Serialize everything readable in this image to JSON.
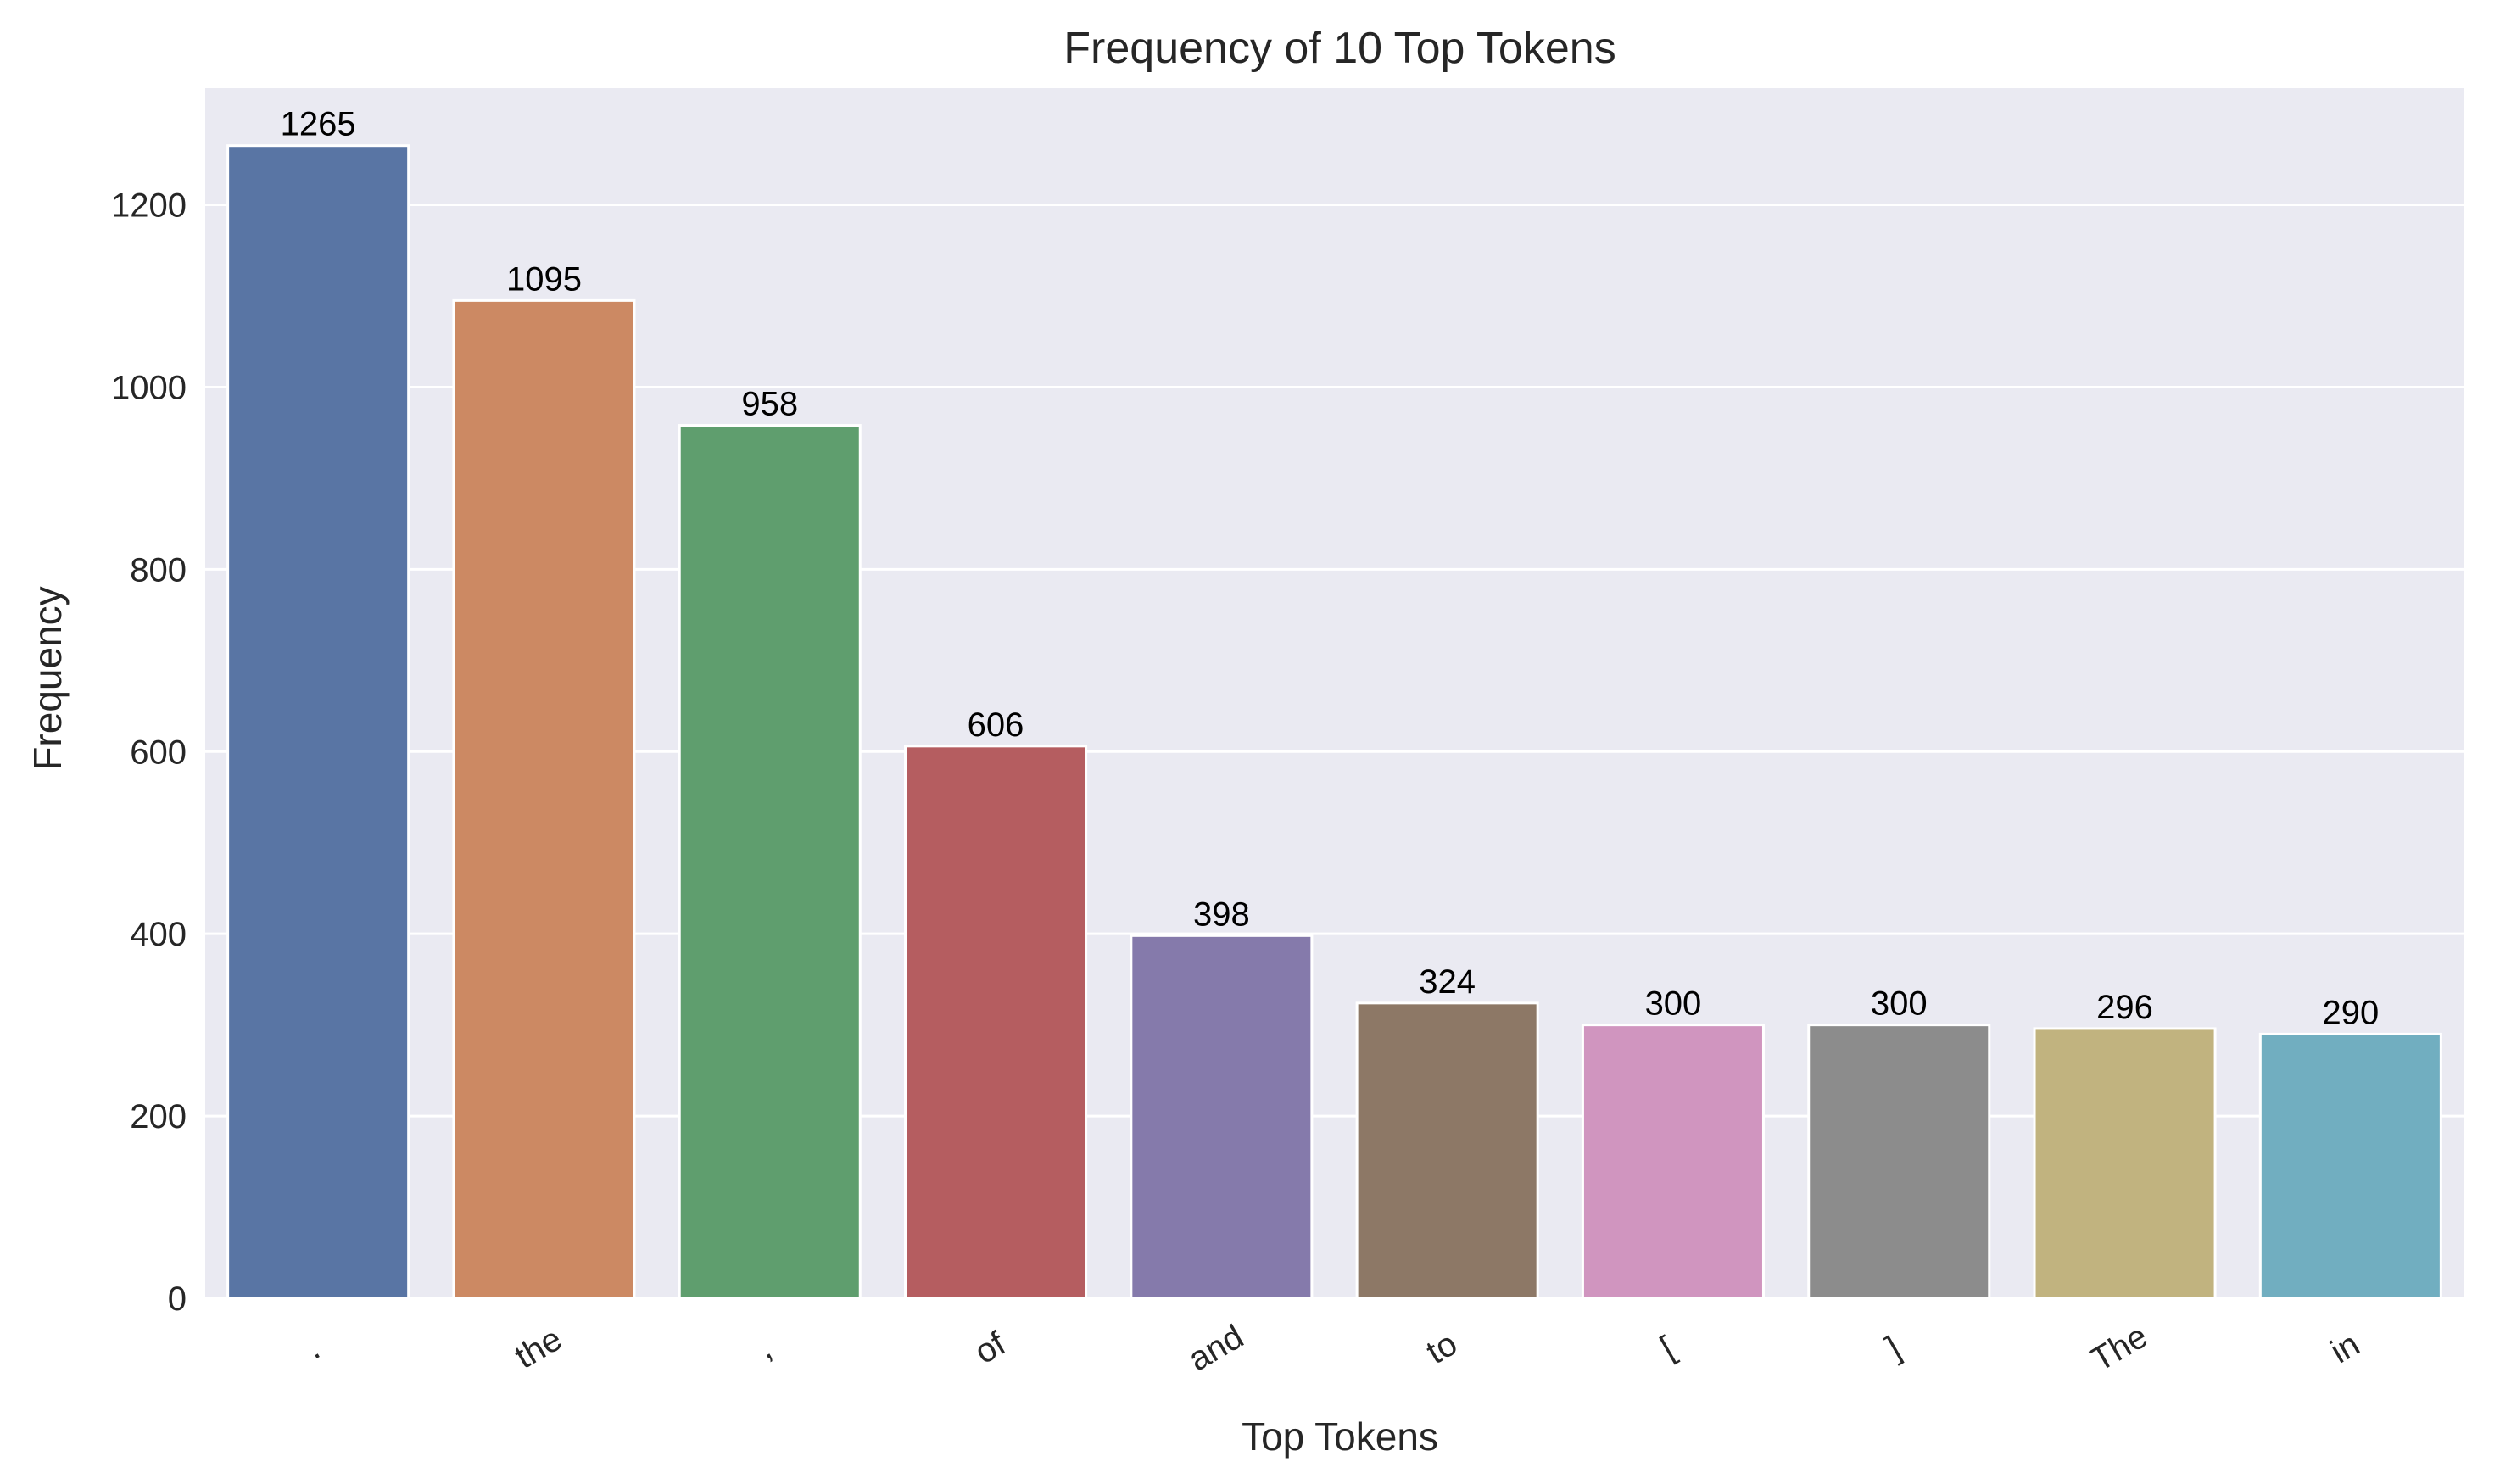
{
  "chart_data": {
    "type": "bar",
    "title": "Frequency of 10 Top Tokens",
    "xlabel": "Top Tokens",
    "ylabel": "Frequency",
    "categories": [
      ".",
      "the",
      ",",
      "of",
      "and",
      "to",
      "[",
      "]",
      "The",
      "in"
    ],
    "values": [
      1265,
      1095,
      958,
      606,
      398,
      324,
      300,
      300,
      296,
      290
    ],
    "data_labels": [
      "1265",
      "1095",
      "958",
      "606",
      "398",
      "324",
      "300",
      "300",
      "296",
      "290"
    ],
    "colors": [
      "#5975a4",
      "#cc8963",
      "#5f9e6e",
      "#b55d60",
      "#857aab",
      "#8d7866",
      "#d095bf",
      "#8c8c8c",
      "#c1b37f",
      "#71aec0"
    ],
    "yticks": [
      0,
      200,
      400,
      600,
      800,
      1000,
      1200
    ],
    "ytick_labels": [
      "0",
      "200",
      "400",
      "600",
      "800",
      "1000",
      "1200"
    ],
    "ylim": [
      0,
      1328
    ],
    "xtick_rotation_deg": 30,
    "grid": true,
    "background_color": "#eaeaf2",
    "grid_color": "#ffffff"
  }
}
